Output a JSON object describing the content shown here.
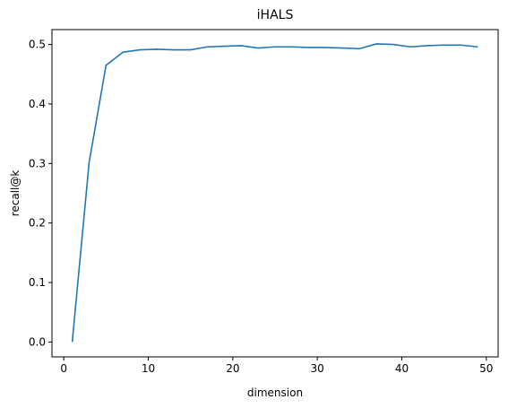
{
  "chart_data": {
    "type": "line",
    "title": "iHALS",
    "xlabel": "dimension",
    "ylabel": "recall@k",
    "xlim": [
      -1.4,
      51.4
    ],
    "ylim": [
      -0.025,
      0.525
    ],
    "xticks": [
      0,
      10,
      20,
      30,
      40,
      50
    ],
    "yticks": [
      0.0,
      0.1,
      0.2,
      0.3,
      0.4,
      0.5
    ],
    "ytick_labels": [
      "0.0",
      "0.1",
      "0.2",
      "0.3",
      "0.4",
      "0.5"
    ],
    "grid": false,
    "series": [
      {
        "color": "#1f77b4",
        "x": [
          1,
          3,
          5,
          7,
          9,
          11,
          13,
          15,
          17,
          19,
          21,
          23,
          25,
          27,
          29,
          31,
          33,
          35,
          37,
          39,
          41,
          43,
          45,
          47,
          49
        ],
        "y": [
          0.0,
          0.302,
          0.465,
          0.487,
          0.491,
          0.492,
          0.491,
          0.491,
          0.496,
          0.497,
          0.498,
          0.494,
          0.496,
          0.496,
          0.495,
          0.495,
          0.494,
          0.493,
          0.501,
          0.5,
          0.496,
          0.498,
          0.499,
          0.499,
          0.496
        ]
      }
    ]
  }
}
